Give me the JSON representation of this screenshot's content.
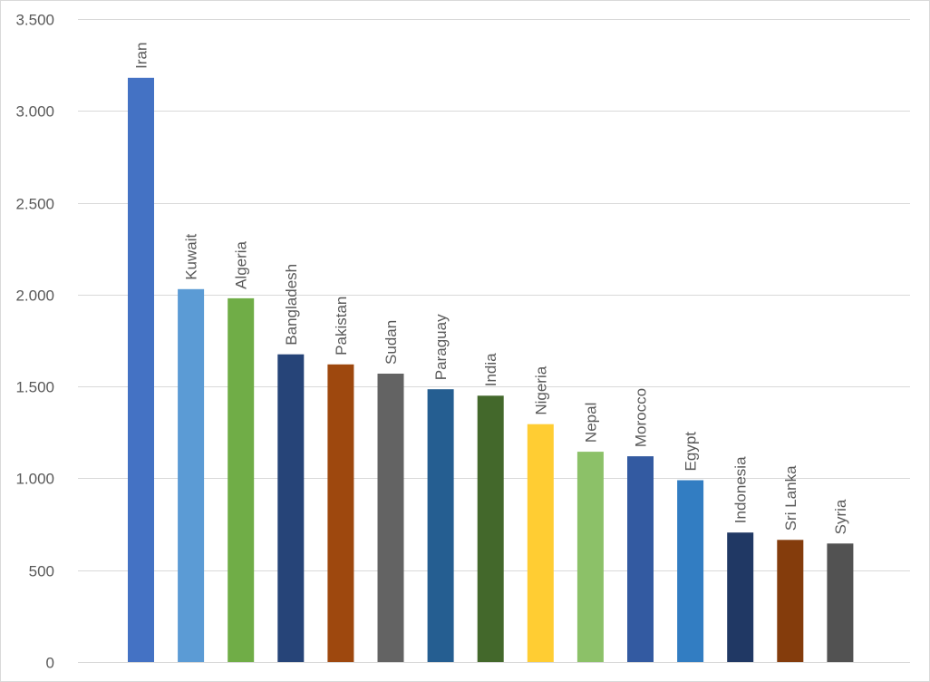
{
  "chart_data": {
    "type": "bar",
    "title": "",
    "xlabel": "",
    "ylabel": "",
    "ylim": [
      0,
      3500
    ],
    "y_ticks": [
      0,
      500,
      1000,
      1500,
      2000,
      2500,
      3000,
      3500
    ],
    "y_tick_labels": [
      "0",
      "500",
      "1.000",
      "1.500",
      "2.000",
      "2.500",
      "3.000",
      "3.500"
    ],
    "grid": true,
    "legend": "none",
    "categories": [
      "Iran",
      "Kuwait",
      "Algeria",
      "Bangladesh",
      "Pakistan",
      "Sudan",
      "Paraguay",
      "India",
      "Nigeria",
      "Nepal",
      "Morocco",
      "Egypt",
      "Indonesia",
      "Sri Lanka",
      "Syria"
    ],
    "values": [
      3180,
      2030,
      1980,
      1675,
      1620,
      1570,
      1485,
      1450,
      1295,
      1145,
      1120,
      990,
      705,
      665,
      645
    ],
    "colors": [
      "#4472c4",
      "#5b9bd5",
      "#70ad47",
      "#264478",
      "#9e480e",
      "#636363",
      "#255e91",
      "#43682b",
      "#ffcd33",
      "#8cc168",
      "#335aa1",
      "#327dc2",
      "#203864",
      "#843c0c",
      "#525252"
    ]
  }
}
